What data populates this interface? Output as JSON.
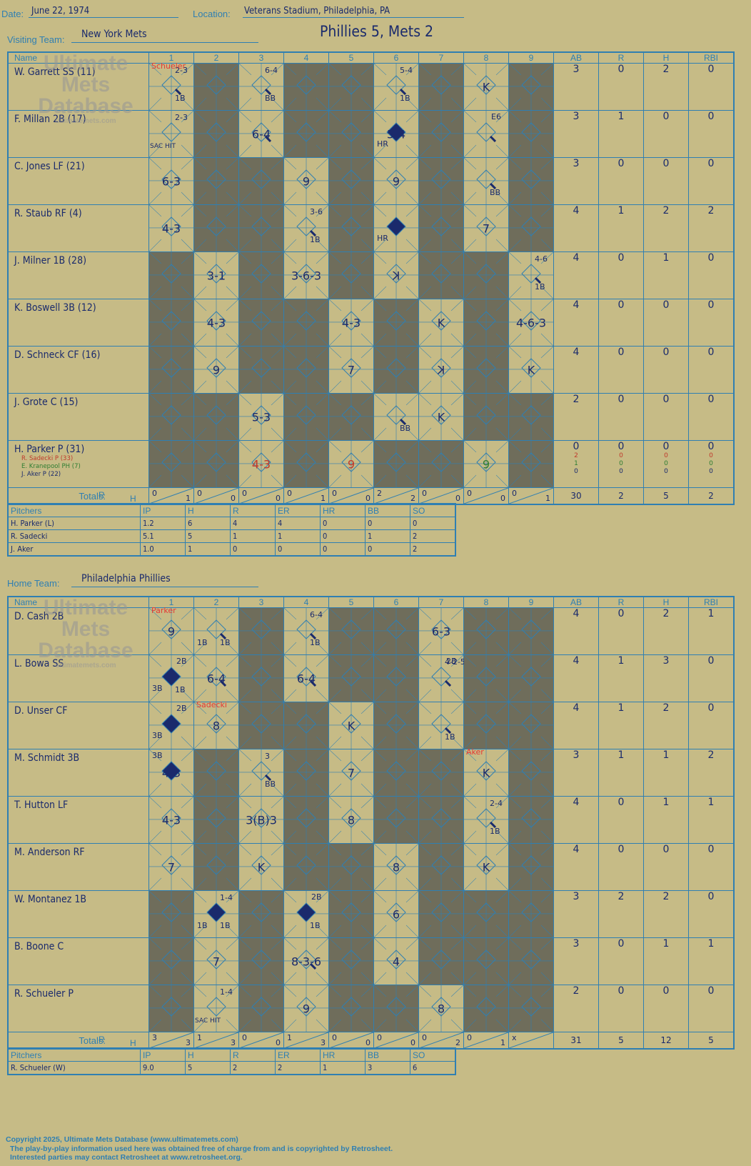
{
  "header": {
    "date_label": "Date:",
    "date": "June 22, 1974",
    "location_label": "Location:",
    "location": "Veterans Stadium, Philadelphia, PA",
    "visiting_label": "Visiting Team:",
    "visiting_team": "New York Mets",
    "score_title": "Phillies 5, Mets 2",
    "home_label": "Home Team:",
    "home_team": "Philadelphia Phillies"
  },
  "watermark": {
    "line1": "Ultimate",
    "line2": "Mets",
    "line3": "Database",
    "url": "ultimatemets.com"
  },
  "columns": {
    "name": "Name",
    "innings": [
      "1",
      "2",
      "3",
      "4",
      "5",
      "6",
      "7",
      "8",
      "9"
    ],
    "stats": [
      "AB",
      "R",
      "H",
      "RBI"
    ],
    "totals": "Totals:",
    "r": "R",
    "h": "H"
  },
  "visitors": {
    "batters": [
      {
        "name": "W. Garrett SS (11)",
        "ab": "3",
        "r": "0",
        "h": "2",
        "rbi": "0"
      },
      {
        "name": "F. Millan 2B (17)",
        "ab": "3",
        "r": "1",
        "h": "0",
        "rbi": "0"
      },
      {
        "name": "C. Jones LF (21)",
        "ab": "3",
        "r": "0",
        "h": "0",
        "rbi": "0"
      },
      {
        "name": "R. Staub RF (4)",
        "ab": "4",
        "r": "1",
        "h": "2",
        "rbi": "2"
      },
      {
        "name": "J. Milner 1B (28)",
        "ab": "4",
        "r": "0",
        "h": "1",
        "rbi": "0"
      },
      {
        "name": "K. Boswell 3B (12)",
        "ab": "4",
        "r": "0",
        "h": "0",
        "rbi": "0"
      },
      {
        "name": "D. Schneck CF (16)",
        "ab": "4",
        "r": "0",
        "h": "0",
        "rbi": "0"
      },
      {
        "name": "J. Grote C (15)",
        "ab": "2",
        "r": "0",
        "h": "0",
        "rbi": "0"
      },
      {
        "name": "H. Parker P (31)",
        "ab": "0",
        "r": "0",
        "h": "0",
        "rbi": "0"
      }
    ],
    "subs": [
      {
        "name": "R. Sadecki P (33)",
        "ab": "2",
        "r": "0",
        "h": "0",
        "rbi": "0",
        "color": "#c0392b"
      },
      {
        "name": "E. Kranepool PH (7)",
        "ab": "1",
        "r": "0",
        "h": "0",
        "rbi": "0",
        "color": "#2e7d32"
      },
      {
        "name": "J. Aker P (22)",
        "ab": "0",
        "r": "0",
        "h": "0",
        "rbi": "0",
        "color": "#1a2a6c"
      }
    ],
    "pitcher_notes": {
      "r1c1": "Schueler"
    },
    "plays": [
      [
        "2-3|1B|out",
        "",
        "6-4|BB|out",
        "",
        "",
        "5-4|1B|out",
        "",
        "K",
        ""
      ],
      [
        "2-3|SAC HIT",
        "",
        "6-4|out",
        "",
        "",
        "HR|5-4|run",
        "",
        "E6|out",
        ""
      ],
      [
        "6-3",
        "",
        "",
        "9",
        "",
        "9",
        "",
        "BB|out",
        ""
      ],
      [
        "4-3",
        "",
        "",
        "3-6|1B|out",
        "",
        "HR|run",
        "",
        "7",
        ""
      ],
      [
        "",
        "3-1",
        "",
        "3-6-3",
        "",
        "K-rev",
        "",
        "",
        "4-6|1B|out"
      ],
      [
        "",
        "4-3",
        "",
        "",
        "4-3",
        "",
        "K",
        "",
        "4-6-3"
      ],
      [
        "",
        "9",
        "",
        "",
        "7",
        "",
        "K-rev",
        "",
        "K"
      ],
      [
        "",
        "",
        "5-3",
        "",
        "",
        "BB|out",
        "K",
        "",
        ""
      ],
      [
        "",
        "",
        "4-3|red",
        "",
        "9|red",
        "",
        "",
        "9|green",
        ""
      ]
    ],
    "totals": [
      [
        "0",
        "1"
      ],
      [
        "0",
        "0"
      ],
      [
        "0",
        "0"
      ],
      [
        "0",
        "1"
      ],
      [
        "0",
        "0"
      ],
      [
        "2",
        "2"
      ],
      [
        "0",
        "0"
      ],
      [
        "0",
        "0"
      ],
      [
        "0",
        "1"
      ]
    ],
    "team_totals": {
      "ab": "30",
      "r": "2",
      "h": "5",
      "rbi": "2"
    },
    "pitchers_header": [
      "Pitchers",
      "IP",
      "H",
      "R",
      "ER",
      "HR",
      "BB",
      "SO"
    ],
    "pitchers": [
      [
        "H. Parker (L)",
        "1.2",
        "6",
        "4",
        "4",
        "0",
        "0",
        "0"
      ],
      [
        "R. Sadecki",
        "5.1",
        "5",
        "1",
        "1",
        "0",
        "1",
        "2"
      ],
      [
        "J. Aker",
        "1.0",
        "1",
        "0",
        "0",
        "0",
        "0",
        "2"
      ]
    ]
  },
  "home": {
    "batters": [
      {
        "name": "D. Cash 2B",
        "ab": "4",
        "r": "0",
        "h": "2",
        "rbi": "1"
      },
      {
        "name": "L. Bowa SS",
        "ab": "4",
        "r": "1",
        "h": "3",
        "rbi": "0"
      },
      {
        "name": "D. Unser CF",
        "ab": "4",
        "r": "1",
        "h": "2",
        "rbi": "0"
      },
      {
        "name": "M. Schmidt 3B",
        "ab": "3",
        "r": "1",
        "h": "1",
        "rbi": "2"
      },
      {
        "name": "T. Hutton LF",
        "ab": "4",
        "r": "0",
        "h": "1",
        "rbi": "1"
      },
      {
        "name": "M. Anderson RF",
        "ab": "4",
        "r": "0",
        "h": "0",
        "rbi": "0"
      },
      {
        "name": "W. Montanez 1B",
        "ab": "3",
        "r": "2",
        "h": "2",
        "rbi": "0"
      },
      {
        "name": "B. Boone C",
        "ab": "3",
        "r": "0",
        "h": "1",
        "rbi": "1"
      },
      {
        "name": "R. Schueler P",
        "ab": "2",
        "r": "0",
        "h": "0",
        "rbi": "0"
      }
    ],
    "pitcher_notes": {
      "r1c1": "Parker",
      "r3c2": "Sadecki",
      "r4c8": "Aker"
    },
    "plays": [
      [
        "9",
        "1B|1B|out",
        "",
        "6-4|1B|out",
        "",
        "",
        "6-3",
        "",
        ""
      ],
      [
        "2B|3B|1B|run",
        "6-4|out",
        "",
        "6-4|out",
        "",
        "",
        "4-2-5|2B|out",
        "",
        ""
      ],
      [
        "2B|3B|run",
        "8",
        "",
        "",
        "K",
        "",
        "1B|out",
        "",
        ""
      ],
      [
        "3B|4-3|run",
        "",
        "3|BB|out",
        "",
        "7",
        "",
        "",
        "K",
        ""
      ],
      [
        "4-3",
        "",
        "3(B)3",
        "",
        "8",
        "",
        "",
        "2-4|1B|out",
        ""
      ],
      [
        "7",
        "",
        "K",
        "",
        "",
        "8",
        "",
        "K",
        ""
      ],
      [
        "",
        "1-4|1B|1B|run",
        "",
        "2B|1B|run",
        "",
        "6",
        "",
        "",
        ""
      ],
      [
        "",
        "7",
        "",
        "8-3-6|out",
        "",
        "4",
        "",
        "",
        ""
      ],
      [
        "",
        "1-4|SAC HIT",
        "",
        "9",
        "",
        "",
        "8",
        "",
        ""
      ]
    ],
    "totals": [
      [
        "3",
        "3"
      ],
      [
        "1",
        "3"
      ],
      [
        "0",
        "0"
      ],
      [
        "1",
        "3"
      ],
      [
        "0",
        "0"
      ],
      [
        "0",
        "0"
      ],
      [
        "0",
        "2"
      ],
      [
        "0",
        "1"
      ],
      [
        "x",
        ""
      ]
    ],
    "team_totals": {
      "ab": "31",
      "r": "5",
      "h": "12",
      "rbi": "5"
    },
    "pitchers_header": [
      "Pitchers",
      "IP",
      "H",
      "R",
      "ER",
      "HR",
      "BB",
      "SO"
    ],
    "pitchers": [
      [
        "R. Schueler (W)",
        "9.0",
        "5",
        "2",
        "2",
        "1",
        "3",
        "6"
      ]
    ]
  },
  "footer": {
    "line1": "Copyright 2025, Ultimate Mets Database (www.ultimatemets.com)",
    "line2": "The play-by-play information used here was obtained free of charge from and is copyrighted by Retrosheet.",
    "line3": "Interested parties may contact Retrosheet at www.retrosheet.org."
  },
  "colors": {
    "accent": "#2f7fb2",
    "ink": "#1a2a6c",
    "dark_cell": "#6f6d5b",
    "paper": "#c6bb86"
  }
}
